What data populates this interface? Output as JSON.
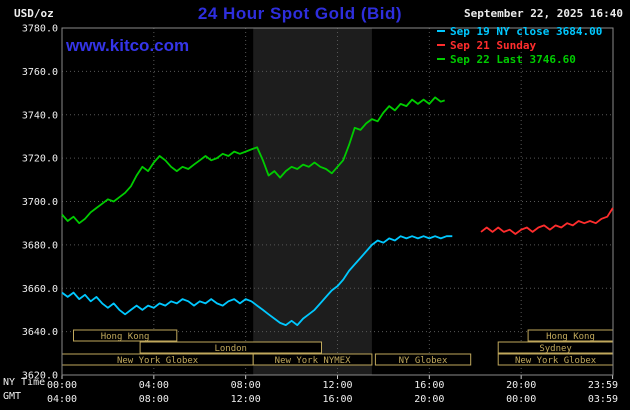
{
  "header": {
    "units": "USD/oz",
    "title": "24 Hour Spot Gold (Bid)",
    "datetime": "September 22, 2025 16:40",
    "watermark": "www.kitco.com"
  },
  "legend": [
    {
      "label": "Sep 19 NY close 3684.00",
      "color": "#00c8ff"
    },
    {
      "label": "Sep 21 Sunday",
      "color": "#ff2d2d"
    },
    {
      "label": "Sep 22 Last 3746.60",
      "color": "#00cc00"
    }
  ],
  "axes": {
    "ny_time_label": "NY Time",
    "gmt_label": "GMT"
  },
  "chart_data": {
    "type": "line",
    "title": "24 Hour Spot Gold (Bid)",
    "y_units": "USD/oz",
    "xlim_hours": [
      0,
      24
    ],
    "ylim": [
      3620,
      3780
    ],
    "y_ticks": [
      3620,
      3640,
      3660,
      3680,
      3700,
      3720,
      3740,
      3760,
      3780
    ],
    "x_tick_hours": [
      0,
      4,
      8,
      12,
      16,
      20,
      23.983
    ],
    "x_ticks_ny": [
      "00:00",
      "04:00",
      "08:00",
      "12:00",
      "16:00",
      "20:00",
      "23:59"
    ],
    "x_ticks_gmt": [
      "04:00",
      "08:00",
      "12:00",
      "16:00",
      "20:00",
      "00:00",
      "03:59"
    ],
    "nymex_band_hours": [
      8.33,
      13.5
    ],
    "band_color": "#1d1d1d",
    "series": [
      {
        "id": "sep19",
        "name": "Sep 19 NY close",
        "close": 3684.0,
        "color": "#00c8ff",
        "points": [
          [
            0.0,
            3658
          ],
          [
            0.25,
            3656
          ],
          [
            0.5,
            3658
          ],
          [
            0.75,
            3655
          ],
          [
            1.0,
            3657
          ],
          [
            1.25,
            3654
          ],
          [
            1.5,
            3656
          ],
          [
            1.75,
            3653
          ],
          [
            2.0,
            3651
          ],
          [
            2.25,
            3653
          ],
          [
            2.5,
            3650
          ],
          [
            2.75,
            3648
          ],
          [
            3.0,
            3650
          ],
          [
            3.25,
            3652
          ],
          [
            3.5,
            3650
          ],
          [
            3.75,
            3652
          ],
          [
            4.0,
            3651
          ],
          [
            4.25,
            3653
          ],
          [
            4.5,
            3652
          ],
          [
            4.75,
            3654
          ],
          [
            5.0,
            3653
          ],
          [
            5.25,
            3655
          ],
          [
            5.5,
            3654
          ],
          [
            5.75,
            3652
          ],
          [
            6.0,
            3654
          ],
          [
            6.25,
            3653
          ],
          [
            6.5,
            3655
          ],
          [
            6.75,
            3653
          ],
          [
            7.0,
            3652
          ],
          [
            7.25,
            3654
          ],
          [
            7.5,
            3655
          ],
          [
            7.75,
            3653
          ],
          [
            8.0,
            3655
          ],
          [
            8.25,
            3654
          ],
          [
            8.5,
            3652
          ],
          [
            8.75,
            3650
          ],
          [
            9.0,
            3648
          ],
          [
            9.25,
            3646
          ],
          [
            9.5,
            3644
          ],
          [
            9.75,
            3643
          ],
          [
            10.0,
            3645
          ],
          [
            10.25,
            3643
          ],
          [
            10.5,
            3646
          ],
          [
            10.75,
            3648
          ],
          [
            11.0,
            3650
          ],
          [
            11.25,
            3653
          ],
          [
            11.5,
            3656
          ],
          [
            11.75,
            3659
          ],
          [
            12.0,
            3661
          ],
          [
            12.25,
            3664
          ],
          [
            12.5,
            3668
          ],
          [
            12.75,
            3671
          ],
          [
            13.0,
            3674
          ],
          [
            13.25,
            3677
          ],
          [
            13.5,
            3680
          ],
          [
            13.75,
            3682
          ],
          [
            14.0,
            3681
          ],
          [
            14.25,
            3683
          ],
          [
            14.5,
            3682
          ],
          [
            14.75,
            3684
          ],
          [
            15.0,
            3683
          ],
          [
            15.25,
            3684
          ],
          [
            15.5,
            3683
          ],
          [
            15.75,
            3684
          ],
          [
            16.0,
            3683
          ],
          [
            16.25,
            3684
          ],
          [
            16.5,
            3683
          ],
          [
            16.75,
            3684
          ],
          [
            17.0,
            3684
          ]
        ]
      },
      {
        "id": "sep21",
        "name": "Sep 21 Sunday",
        "color": "#ff2d2d",
        "points": [
          [
            18.25,
            3686
          ],
          [
            18.5,
            3688
          ],
          [
            18.75,
            3686
          ],
          [
            19.0,
            3688
          ],
          [
            19.25,
            3686
          ],
          [
            19.5,
            3687
          ],
          [
            19.75,
            3685
          ],
          [
            20.0,
            3687
          ],
          [
            20.25,
            3688
          ],
          [
            20.5,
            3686
          ],
          [
            20.75,
            3688
          ],
          [
            21.0,
            3689
          ],
          [
            21.25,
            3687
          ],
          [
            21.5,
            3689
          ],
          [
            21.75,
            3688
          ],
          [
            22.0,
            3690
          ],
          [
            22.25,
            3689
          ],
          [
            22.5,
            3691
          ],
          [
            22.75,
            3690
          ],
          [
            23.0,
            3691
          ],
          [
            23.25,
            3690
          ],
          [
            23.5,
            3692
          ],
          [
            23.75,
            3693
          ],
          [
            23.99,
            3697
          ]
        ]
      },
      {
        "id": "sep22",
        "name": "Sep 22 Last",
        "last": 3746.6,
        "color": "#00cc00",
        "points": [
          [
            0.0,
            3694
          ],
          [
            0.25,
            3691
          ],
          [
            0.5,
            3693
          ],
          [
            0.75,
            3690
          ],
          [
            1.0,
            3692
          ],
          [
            1.25,
            3695
          ],
          [
            1.5,
            3697
          ],
          [
            1.75,
            3699
          ],
          [
            2.0,
            3701
          ],
          [
            2.25,
            3700
          ],
          [
            2.5,
            3702
          ],
          [
            2.75,
            3704
          ],
          [
            3.0,
            3707
          ],
          [
            3.25,
            3712
          ],
          [
            3.5,
            3716
          ],
          [
            3.75,
            3714
          ],
          [
            4.0,
            3718
          ],
          [
            4.25,
            3721
          ],
          [
            4.5,
            3719
          ],
          [
            4.75,
            3716
          ],
          [
            5.0,
            3714
          ],
          [
            5.25,
            3716
          ],
          [
            5.5,
            3715
          ],
          [
            5.75,
            3717
          ],
          [
            6.0,
            3719
          ],
          [
            6.25,
            3721
          ],
          [
            6.5,
            3719
          ],
          [
            6.75,
            3720
          ],
          [
            7.0,
            3722
          ],
          [
            7.25,
            3721
          ],
          [
            7.5,
            3723
          ],
          [
            7.75,
            3722
          ],
          [
            8.0,
            3723
          ],
          [
            8.25,
            3724
          ],
          [
            8.5,
            3725
          ],
          [
            8.75,
            3719
          ],
          [
            9.0,
            3712
          ],
          [
            9.25,
            3714
          ],
          [
            9.5,
            3711
          ],
          [
            9.75,
            3714
          ],
          [
            10.0,
            3716
          ],
          [
            10.25,
            3715
          ],
          [
            10.5,
            3717
          ],
          [
            10.75,
            3716
          ],
          [
            11.0,
            3718
          ],
          [
            11.25,
            3716
          ],
          [
            11.5,
            3715
          ],
          [
            11.75,
            3713
          ],
          [
            12.0,
            3716
          ],
          [
            12.25,
            3719
          ],
          [
            12.5,
            3726
          ],
          [
            12.75,
            3734
          ],
          [
            13.0,
            3733
          ],
          [
            13.25,
            3736
          ],
          [
            13.5,
            3738
          ],
          [
            13.75,
            3737
          ],
          [
            14.0,
            3741
          ],
          [
            14.25,
            3744
          ],
          [
            14.5,
            3742
          ],
          [
            14.75,
            3745
          ],
          [
            15.0,
            3744
          ],
          [
            15.25,
            3747
          ],
          [
            15.5,
            3745
          ],
          [
            15.75,
            3747
          ],
          [
            16.0,
            3745
          ],
          [
            16.25,
            3748
          ],
          [
            16.5,
            3746
          ],
          [
            16.67,
            3746.6
          ]
        ]
      }
    ]
  },
  "sessions": {
    "color": "#c0a85c",
    "rows": [
      [
        {
          "label": "Hong Kong",
          "start": 0.5,
          "end": 5.0
        },
        {
          "label": "Hong Kong",
          "start": 20.3,
          "end": 24
        }
      ],
      [
        {
          "label": "London",
          "start": 3.4,
          "end": 11.3
        },
        {
          "label": "Sydney",
          "start": 19.0,
          "end": 24
        }
      ],
      [
        {
          "label": "New York Globex",
          "start": 0,
          "end": 8.33
        },
        {
          "label": "New York NYMEX",
          "start": 8.33,
          "end": 13.5
        },
        {
          "label": "NY Globex",
          "start": 13.65,
          "end": 17.8
        },
        {
          "label": "New York Globex",
          "start": 19.0,
          "end": 24
        }
      ]
    ]
  }
}
